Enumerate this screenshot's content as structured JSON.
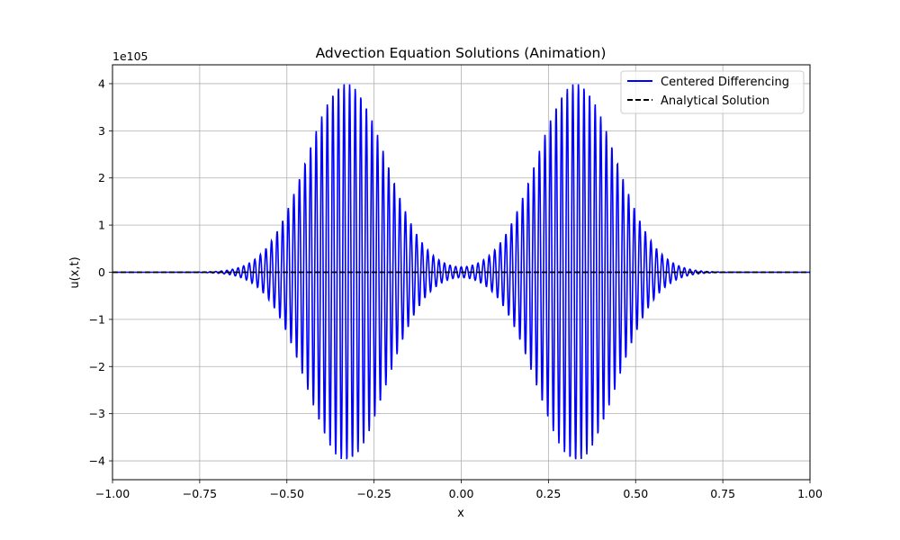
{
  "chart_data": {
    "type": "line",
    "title": "Advection Equation Solutions (Animation)",
    "xlabel": "x",
    "ylabel": "u(x,t)",
    "y_offset_label": "1e105",
    "xlim": [
      -1.0,
      1.0
    ],
    "ylim": [
      -4.4,
      4.4
    ],
    "y_scale_factor": "1e105",
    "grid": true,
    "legend_position": "top-right",
    "x_ticks": [
      -1.0,
      -0.75,
      -0.5,
      -0.25,
      0.0,
      0.25,
      0.5,
      0.75,
      1.0
    ],
    "x_tick_labels": [
      "−1.00",
      "−0.75",
      "−0.50",
      "−0.25",
      "0.00",
      "0.25",
      "0.50",
      "0.75",
      "1.00"
    ],
    "y_ticks": [
      -4,
      -3,
      -2,
      -1,
      0,
      1,
      2,
      3,
      4
    ],
    "y_tick_labels": [
      "−4",
      "−3",
      "−2",
      "−1",
      "0",
      "1",
      "2",
      "3",
      "4"
    ],
    "series": [
      {
        "name": "Centered Differencing",
        "color": "#0000ff",
        "style": "solid",
        "description_points": {
          "envelope_peaks": [
            {
              "x": -0.33,
              "amplitude": 4.0
            },
            {
              "x": 0.33,
              "amplitude": 4.0
            }
          ],
          "envelope_width": 0.16,
          "oscillation_period": 0.016
        }
      },
      {
        "name": "Analytical Solution",
        "color": "#000000",
        "style": "dashed",
        "x": [
          -1.0,
          1.0
        ],
        "values": [
          0,
          0
        ]
      }
    ]
  }
}
